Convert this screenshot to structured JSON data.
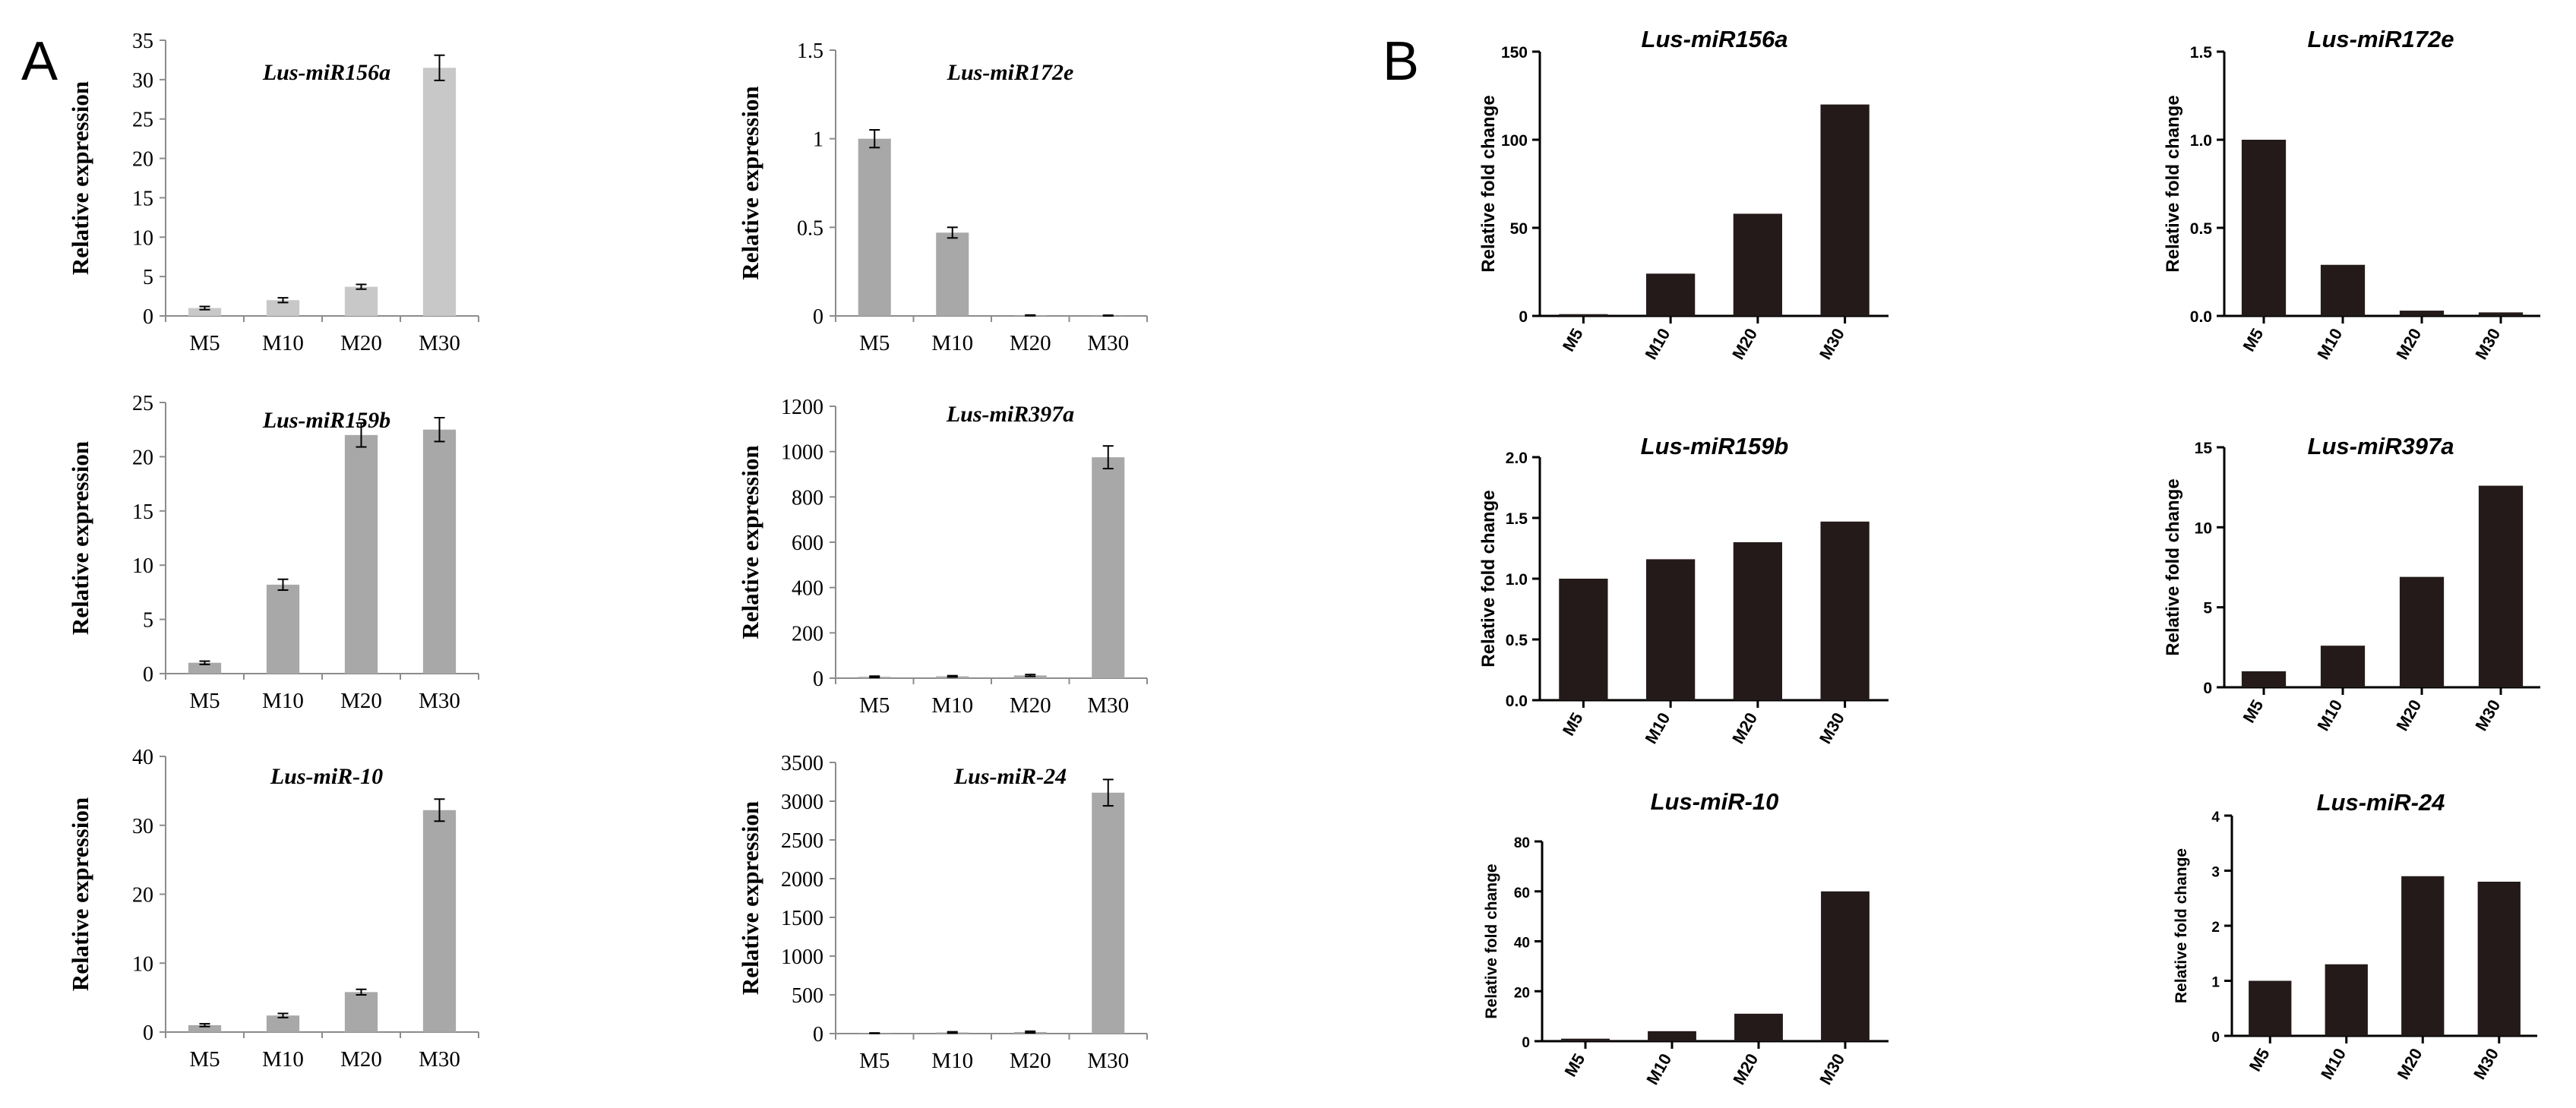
{
  "panel_labels": [
    "A",
    "B"
  ],
  "colors": {
    "bar_light": "#c8c8c8",
    "bar_mid": "#a8a8a8",
    "bar_dark": "#231a19",
    "axis_a": "#8c8c8c",
    "axis_b": "#000000",
    "text": "#000000"
  },
  "chart_data": [
    {
      "panel": "A",
      "type": "bar",
      "title": "Lus-miR156a",
      "xlabel": "",
      "ylabel": "Relative expression",
      "categories": [
        "M5",
        "M10",
        "M20",
        "M30"
      ],
      "values": [
        1,
        2,
        3.7,
        31.5
      ],
      "errors": [
        0.2,
        0.3,
        0.3,
        1.6
      ],
      "ylim": [
        0,
        35
      ],
      "yticks": [
        0,
        5,
        10,
        15,
        20,
        25,
        30,
        35
      ],
      "ytick_labels": [
        "0",
        "5",
        "10",
        "15",
        "20",
        "25",
        "30",
        "35"
      ],
      "bar_color": "#c8c8c8"
    },
    {
      "panel": "A",
      "type": "bar",
      "title": "Lus-miR172e",
      "xlabel": "",
      "ylabel": "Relative expression",
      "categories": [
        "M5",
        "M10",
        "M20",
        "M30"
      ],
      "values": [
        1,
        0.47,
        0.003,
        0.002
      ],
      "errors": [
        0.05,
        0.03,
        0.002,
        0.002
      ],
      "ylim": [
        0,
        1.5
      ],
      "yticks": [
        0,
        0.5,
        1,
        1.5
      ],
      "ytick_labels": [
        "0",
        "0.5",
        "1",
        "1.5"
      ],
      "bar_color": "#a8a8a8"
    },
    {
      "panel": "A",
      "type": "bar",
      "title": "Lus-miR159b",
      "xlabel": "",
      "ylabel": "Relative expression",
      "categories": [
        "M5",
        "M10",
        "M20",
        "M30"
      ],
      "values": [
        1,
        8.2,
        22,
        22.5
      ],
      "errors": [
        0.15,
        0.5,
        1.1,
        1.1
      ],
      "ylim": [
        0,
        25
      ],
      "yticks": [
        0,
        5,
        10,
        15,
        20,
        25
      ],
      "ytick_labels": [
        "0",
        "5",
        "10",
        "15",
        "20",
        "25"
      ],
      "bar_color": "#a8a8a8"
    },
    {
      "panel": "A",
      "type": "bar",
      "title": "Lus-miR397a",
      "xlabel": "",
      "ylabel": "Relative expression",
      "categories": [
        "M5",
        "M10",
        "M20",
        "M30"
      ],
      "values": [
        6,
        8,
        12,
        975
      ],
      "errors": [
        3,
        3,
        4,
        50
      ],
      "ylim": [
        0,
        1200
      ],
      "yticks": [
        0,
        200,
        400,
        600,
        800,
        1000,
        1200
      ],
      "ytick_labels": [
        "0",
        "200",
        "400",
        "600",
        "800",
        "1000",
        "1200"
      ],
      "bar_color": "#a8a8a8"
    },
    {
      "panel": "A",
      "type": "bar",
      "title": "Lus-miR-10",
      "xlabel": "",
      "ylabel": "Relative expression",
      "categories": [
        "M5",
        "M10",
        "M20",
        "M30"
      ],
      "values": [
        1,
        2.4,
        5.8,
        32.2
      ],
      "errors": [
        0.2,
        0.3,
        0.4,
        1.6
      ],
      "ylim": [
        0,
        40
      ],
      "yticks": [
        0,
        10,
        20,
        30,
        40
      ],
      "ytick_labels": [
        "0",
        "10",
        "20",
        "30",
        "40"
      ],
      "bar_color": "#a8a8a8"
    },
    {
      "panel": "A",
      "type": "bar",
      "title": "Lus-miR-24",
      "xlabel": "",
      "ylabel": "Relative expression",
      "categories": [
        "M5",
        "M10",
        "M20",
        "M30"
      ],
      "values": [
        5,
        15,
        20,
        3110
      ],
      "errors": [
        3,
        8,
        10,
        170
      ],
      "ylim": [
        0,
        3500
      ],
      "yticks": [
        0,
        500,
        1000,
        1500,
        2000,
        2500,
        3000,
        3500
      ],
      "ytick_labels": [
        "0",
        "500",
        "1000",
        "1500",
        "2000",
        "2500",
        "3000",
        "3500"
      ],
      "bar_color": "#a8a8a8"
    },
    {
      "panel": "B",
      "type": "bar",
      "title": "Lus-miR156a",
      "xlabel": "",
      "ylabel": "Relative fold change",
      "categories": [
        "M5",
        "M10",
        "M20",
        "M30"
      ],
      "values": [
        1,
        24,
        58,
        120
      ],
      "ylim": [
        0,
        150
      ],
      "yticks": [
        0,
        50,
        100,
        150
      ],
      "ytick_labels": [
        "0",
        "50",
        "100",
        "150"
      ],
      "bar_color": "#231a19"
    },
    {
      "panel": "B",
      "type": "bar",
      "title": "Lus-miR172e",
      "xlabel": "",
      "ylabel": "Relative fold change",
      "categories": [
        "M5",
        "M10",
        "M20",
        "M30"
      ],
      "values": [
        1,
        0.29,
        0.03,
        0.02
      ],
      "ylim": [
        0,
        1.5
      ],
      "yticks": [
        0,
        0.5,
        1.0,
        1.5
      ],
      "ytick_labels": [
        "0.0",
        "0.5",
        "1.0",
        "1.5"
      ],
      "bar_color": "#231a19"
    },
    {
      "panel": "B",
      "type": "bar",
      "title": "Lus-miR159b",
      "xlabel": "",
      "ylabel": "Relative fold change",
      "categories": [
        "M5",
        "M10",
        "M20",
        "M30"
      ],
      "values": [
        1,
        1.16,
        1.3,
        1.47
      ],
      "ylim": [
        0,
        2.0
      ],
      "yticks": [
        0,
        0.5,
        1.0,
        1.5,
        2.0
      ],
      "ytick_labels": [
        "0.0",
        "0.5",
        "1.0",
        "1.5",
        "2.0"
      ],
      "bar_color": "#231a19"
    },
    {
      "panel": "B",
      "type": "bar",
      "title": "Lus-miR397a",
      "xlabel": "",
      "ylabel": "Relative fold change",
      "categories": [
        "M5",
        "M10",
        "M20",
        "M30"
      ],
      "values": [
        1,
        2.6,
        6.9,
        12.6
      ],
      "ylim": [
        0,
        15
      ],
      "yticks": [
        0,
        5,
        10,
        15
      ],
      "ytick_labels": [
        "0",
        "5",
        "10",
        "15"
      ],
      "bar_color": "#231a19"
    },
    {
      "panel": "B",
      "type": "bar",
      "title": "Lus-miR-10",
      "xlabel": "",
      "ylabel": "Relative fold change",
      "categories": [
        "M5",
        "M10",
        "M20",
        "M30"
      ],
      "values": [
        1,
        4,
        11,
        60
      ],
      "ylim": [
        0,
        80
      ],
      "yticks": [
        0,
        20,
        40,
        60,
        80
      ],
      "ytick_labels": [
        "0",
        "20",
        "40",
        "60",
        "80"
      ],
      "bar_color": "#231a19"
    },
    {
      "panel": "B",
      "type": "bar",
      "title": "Lus-miR-24",
      "xlabel": "",
      "ylabel": "Relative fold change",
      "categories": [
        "M5",
        "M10",
        "M20",
        "M30"
      ],
      "values": [
        1,
        1.3,
        2.9,
        2.8
      ],
      "ylim": [
        0,
        4
      ],
      "yticks": [
        0,
        1,
        2,
        3,
        4
      ],
      "ytick_labels": [
        "0",
        "1",
        "2",
        "3",
        "4"
      ],
      "bar_color": "#231a19"
    }
  ]
}
